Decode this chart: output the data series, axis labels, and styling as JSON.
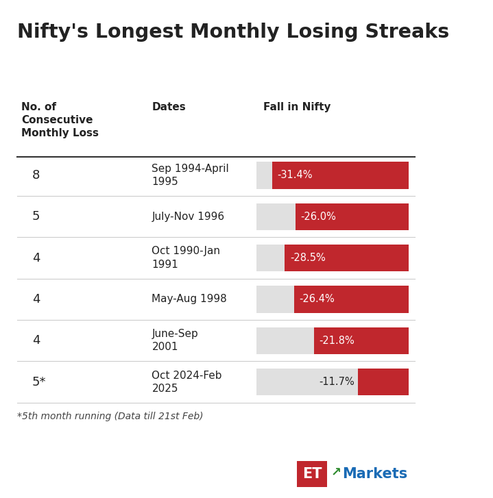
{
  "title": "Nifty's Longest Monthly Losing Streaks",
  "col1_header": "No. of\nConsecutive\nMonthly Loss",
  "col2_header": "Dates",
  "col3_header": "Fall in Nifty",
  "rows": [
    {
      "count": "8",
      "dates": "Sep 1994-April\n1995",
      "fall": -31.4,
      "label": "-31.4%"
    },
    {
      "count": "5",
      "dates": "July-Nov 1996",
      "fall": -26.0,
      "label": "-26.0%"
    },
    {
      "count": "4",
      "dates": "Oct 1990-Jan\n1991",
      "fall": -28.5,
      "label": "-28.5%"
    },
    {
      "count": "4",
      "dates": "May-Aug 1998",
      "fall": -26.4,
      "label": "-26.4%"
    },
    {
      "count": "4",
      "dates": "June-Sep\n2001",
      "fall": -21.8,
      "label": "-21.8%"
    },
    {
      "count": "5*",
      "dates": "Oct 2024-Feb\n2025",
      "fall": -11.7,
      "label": "-11.7%"
    }
  ],
  "footnote": "*5th month running (Data till 21st Feb)",
  "bar_color": "#C0272D",
  "bg_color_bar": "#E0E0E0",
  "bg_color": "#FFFFFF",
  "text_color": "#222222",
  "header_line_color": "#333333",
  "sep_line_color": "#CCCCCC",
  "max_fall": 35.0,
  "et_box_color": "#C0272D",
  "markets_text_color": "#1a6bb5",
  "et_text": "ET",
  "markets_text": "Markets"
}
